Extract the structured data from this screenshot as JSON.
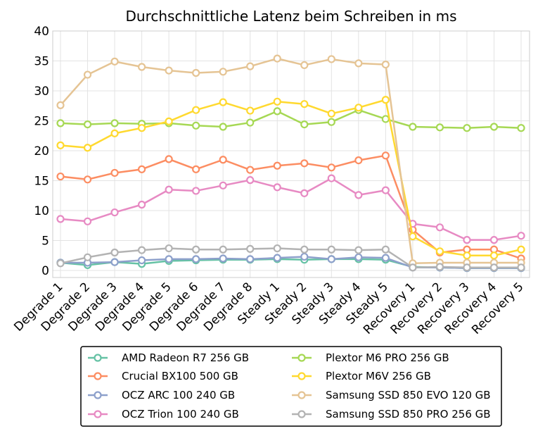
{
  "chart_data": {
    "type": "line",
    "title": "Durchschnittliche Latenz beim Schreiben in ms",
    "xlabel": "",
    "ylabel": "",
    "ylim": [
      0,
      40
    ],
    "yticks": [
      0,
      5,
      10,
      15,
      20,
      25,
      30,
      35,
      40
    ],
    "grid": true,
    "legend_position": "bottom",
    "categories": [
      "Degrade 1",
      "Degrade 2",
      "Degrade 3",
      "Degrade 4",
      "Degrade 5",
      "Degrade 6",
      "Degrade 7",
      "Degrade 8",
      "Steady 1",
      "Steady 2",
      "Steady 3",
      "Steady 4",
      "Steady 5",
      "Recovery 1",
      "Recovery 2",
      "Recovery 3",
      "Recovery 4",
      "Recovery 5"
    ],
    "series": [
      {
        "name": "AMD Radeon R7 256 GB",
        "color": "#66c2a5",
        "values": [
          1.3,
          0.9,
          1.4,
          1.1,
          1.6,
          1.7,
          1.8,
          1.8,
          1.9,
          1.8,
          1.9,
          1.9,
          1.8,
          0.6,
          0.5,
          0.4,
          0.4,
          0.4
        ]
      },
      {
        "name": "Crucial BX100 500 GB",
        "color": "#fc8d62",
        "values": [
          15.7,
          15.2,
          16.3,
          16.9,
          18.6,
          16.9,
          18.5,
          16.8,
          17.5,
          17.9,
          17.2,
          18.4,
          19.2,
          6.8,
          3.0,
          3.5,
          3.5,
          2.0
        ]
      },
      {
        "name": "OCZ ARC 100 240 GB",
        "color": "#8da0cb",
        "values": [
          1.3,
          1.3,
          1.4,
          1.7,
          1.9,
          1.9,
          2.0,
          1.9,
          2.1,
          2.3,
          1.9,
          2.2,
          2.1,
          0.5,
          0.5,
          0.4,
          0.4,
          0.4
        ]
      },
      {
        "name": "OCZ Trion 100 240 GB",
        "color": "#e78ac3",
        "values": [
          8.6,
          8.2,
          9.7,
          11.0,
          13.5,
          13.3,
          14.2,
          15.1,
          13.9,
          12.9,
          15.4,
          12.6,
          13.4,
          7.8,
          7.2,
          5.1,
          5.1,
          5.8
        ]
      },
      {
        "name": "Plextor M6 PRO 256 GB",
        "color": "#a6d854",
        "values": [
          24.6,
          24.4,
          24.6,
          24.5,
          24.6,
          24.2,
          24.0,
          24.7,
          26.6,
          24.4,
          24.8,
          26.8,
          25.3,
          24.0,
          23.9,
          23.8,
          24.0,
          23.8
        ]
      },
      {
        "name": "Plextor M6V 256 GB",
        "color": "#ffd92f",
        "values": [
          20.9,
          20.5,
          22.9,
          23.8,
          24.9,
          26.8,
          28.1,
          26.7,
          28.2,
          27.8,
          26.2,
          27.2,
          28.5,
          5.7,
          3.2,
          2.5,
          2.5,
          3.5
        ]
      },
      {
        "name": "Samsung SSD 850 EVO 120 GB",
        "color": "#e5c494",
        "values": [
          27.6,
          32.7,
          34.9,
          34.0,
          33.4,
          33.0,
          33.2,
          34.1,
          35.4,
          34.3,
          35.3,
          34.6,
          34.4,
          1.2,
          1.3,
          1.3,
          1.3,
          1.3
        ]
      },
      {
        "name": "Samsung SSD 850 PRO 256 GB",
        "color": "#b3b3b3",
        "values": [
          1.2,
          2.2,
          3.0,
          3.4,
          3.7,
          3.5,
          3.5,
          3.6,
          3.7,
          3.5,
          3.5,
          3.4,
          3.5,
          0.5,
          0.6,
          0.5,
          0.5,
          0.5
        ]
      }
    ]
  }
}
